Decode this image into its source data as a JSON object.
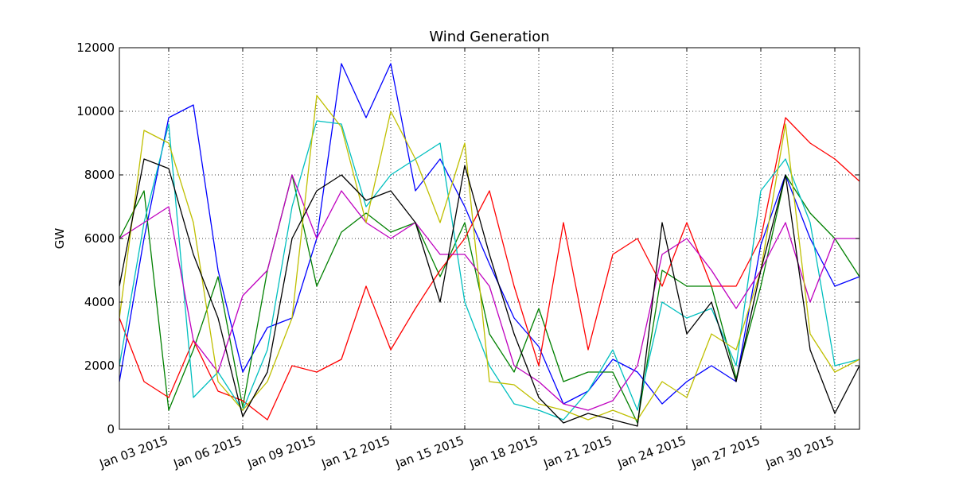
{
  "chart_data": {
    "type": "line",
    "title": "Wind Generation",
    "xlabel": "",
    "ylabel": "GW",
    "ylim": [
      0,
      12000
    ],
    "xlim": [
      "2015-01-01",
      "2015-01-31"
    ],
    "grid": true,
    "legend": "none",
    "y_ticks": [
      0,
      2000,
      4000,
      6000,
      8000,
      10000,
      12000
    ],
    "x_ticks": [
      {
        "date": "2015-01-03",
        "label": "Jan 03 2015"
      },
      {
        "date": "2015-01-06",
        "label": "Jan 06 2015"
      },
      {
        "date": "2015-01-09",
        "label": "Jan 09 2015"
      },
      {
        "date": "2015-01-12",
        "label": "Jan 12 2015"
      },
      {
        "date": "2015-01-15",
        "label": "Jan 15 2015"
      },
      {
        "date": "2015-01-18",
        "label": "Jan 18 2015"
      },
      {
        "date": "2015-01-21",
        "label": "Jan 21 2015"
      },
      {
        "date": "2015-01-24",
        "label": "Jan 24 2015"
      },
      {
        "date": "2015-01-27",
        "label": "Jan 27 2015"
      },
      {
        "date": "2015-01-30",
        "label": "Jan 30 2015"
      }
    ],
    "x": [
      "2015-01-01",
      "2015-01-02",
      "2015-01-03",
      "2015-01-04",
      "2015-01-05",
      "2015-01-06",
      "2015-01-07",
      "2015-01-08",
      "2015-01-09",
      "2015-01-10",
      "2015-01-11",
      "2015-01-12",
      "2015-01-13",
      "2015-01-14",
      "2015-01-15",
      "2015-01-16",
      "2015-01-17",
      "2015-01-18",
      "2015-01-19",
      "2015-01-20",
      "2015-01-21",
      "2015-01-22",
      "2015-01-23",
      "2015-01-24",
      "2015-01-25",
      "2015-01-26",
      "2015-01-27",
      "2015-01-28",
      "2015-01-29",
      "2015-01-30",
      "2015-01-31"
    ],
    "series": [
      {
        "color": "#0000ff",
        "values": [
          1500,
          6000,
          9800,
          10200,
          5000,
          1800,
          3200,
          3500,
          6000,
          11500,
          9800,
          11500,
          7500,
          8500,
          7000,
          5200,
          3500,
          2600,
          800,
          1200,
          2200,
          1800,
          800,
          1500,
          2000,
          1500,
          5800,
          8000,
          6000,
          4500,
          4800
        ]
      },
      {
        "color": "#008000",
        "values": [
          6000,
          7500,
          600,
          2500,
          4800,
          700,
          5000,
          8000,
          4500,
          6200,
          6800,
          6200,
          6500,
          4800,
          6500,
          3000,
          1800,
          3800,
          1500,
          1800,
          1800,
          200,
          5000,
          4500,
          4500,
          1600,
          4500,
          8000,
          6800,
          6000,
          4800
        ]
      },
      {
        "color": "#ff0000",
        "values": [
          3500,
          1500,
          1000,
          2800,
          1200,
          900,
          300,
          2000,
          1800,
          2200,
          4500,
          2500,
          3800,
          5000,
          6000,
          7500,
          4500,
          2000,
          6500,
          2500,
          5500,
          6000,
          4500,
          6500,
          4500,
          4500,
          6000,
          9800,
          9000,
          8500,
          7800
        ]
      },
      {
        "color": "#00bfbf",
        "values": [
          2000,
          6500,
          9600,
          1000,
          1800,
          600,
          2500,
          7000,
          9700,
          9600,
          7000,
          8000,
          8500,
          9000,
          4000,
          2000,
          800,
          600,
          300,
          1200,
          2500,
          600,
          4000,
          3500,
          3800,
          2000,
          7500,
          8500,
          6500,
          2000,
          2200
        ]
      },
      {
        "color": "#bf00bf",
        "values": [
          6000,
          6500,
          7000,
          2800,
          1800,
          4200,
          5000,
          8000,
          6000,
          7500,
          6500,
          6000,
          6500,
          5500,
          5500,
          4500,
          2000,
          1500,
          800,
          600,
          900,
          2000,
          5500,
          6000,
          5000,
          3800,
          5000,
          6500,
          4000,
          6000,
          6000
        ]
      },
      {
        "color": "#bfbf00",
        "values": [
          3500,
          9400,
          9000,
          6500,
          1500,
          600,
          1500,
          3500,
          10500,
          9500,
          6500,
          10000,
          8500,
          6500,
          9000,
          1500,
          1400,
          800,
          600,
          300,
          600,
          300,
          1500,
          1000,
          3000,
          2500,
          5000,
          9600,
          3000,
          1800,
          2200
        ]
      },
      {
        "color": "#000000",
        "values": [
          4500,
          8500,
          8200,
          5500,
          3500,
          400,
          1800,
          6000,
          7500,
          8000,
          7200,
          7500,
          6500,
          4000,
          8300,
          5500,
          3000,
          1000,
          200,
          500,
          300,
          100,
          6500,
          3000,
          4000,
          1500,
          5000,
          8000,
          2500,
          500,
          2000
        ]
      }
    ]
  }
}
